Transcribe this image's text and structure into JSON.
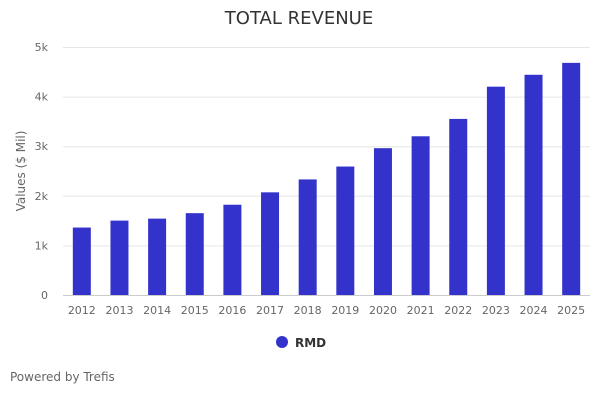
{
  "chart_data": {
    "type": "bar",
    "title": "TOTAL REVENUE",
    "ylabel": "Values ($ Mil)",
    "xlabel": "",
    "categories": [
      "2012",
      "2013",
      "2014",
      "2015",
      "2016",
      "2017",
      "2018",
      "2019",
      "2020",
      "2021",
      "2022",
      "2023",
      "2024",
      "2025"
    ],
    "series": [
      {
        "name": "RMD",
        "color": "#3333cc",
        "values": [
          1360,
          1500,
          1540,
          1650,
          1820,
          2070,
          2330,
          2590,
          2960,
          3200,
          3550,
          4200,
          4440,
          4680
        ]
      }
    ],
    "ylim": [
      0,
      5000
    ],
    "yticks": [
      {
        "value": 0,
        "label": "0"
      },
      {
        "value": 1000,
        "label": "1k"
      },
      {
        "value": 2000,
        "label": "2k"
      },
      {
        "value": 3000,
        "label": "3k"
      },
      {
        "value": 4000,
        "label": "4k"
      },
      {
        "value": 5000,
        "label": "5k"
      }
    ],
    "grid": true,
    "legend": "bottom-center"
  },
  "footer": {
    "credit": "Powered by Trefis"
  }
}
